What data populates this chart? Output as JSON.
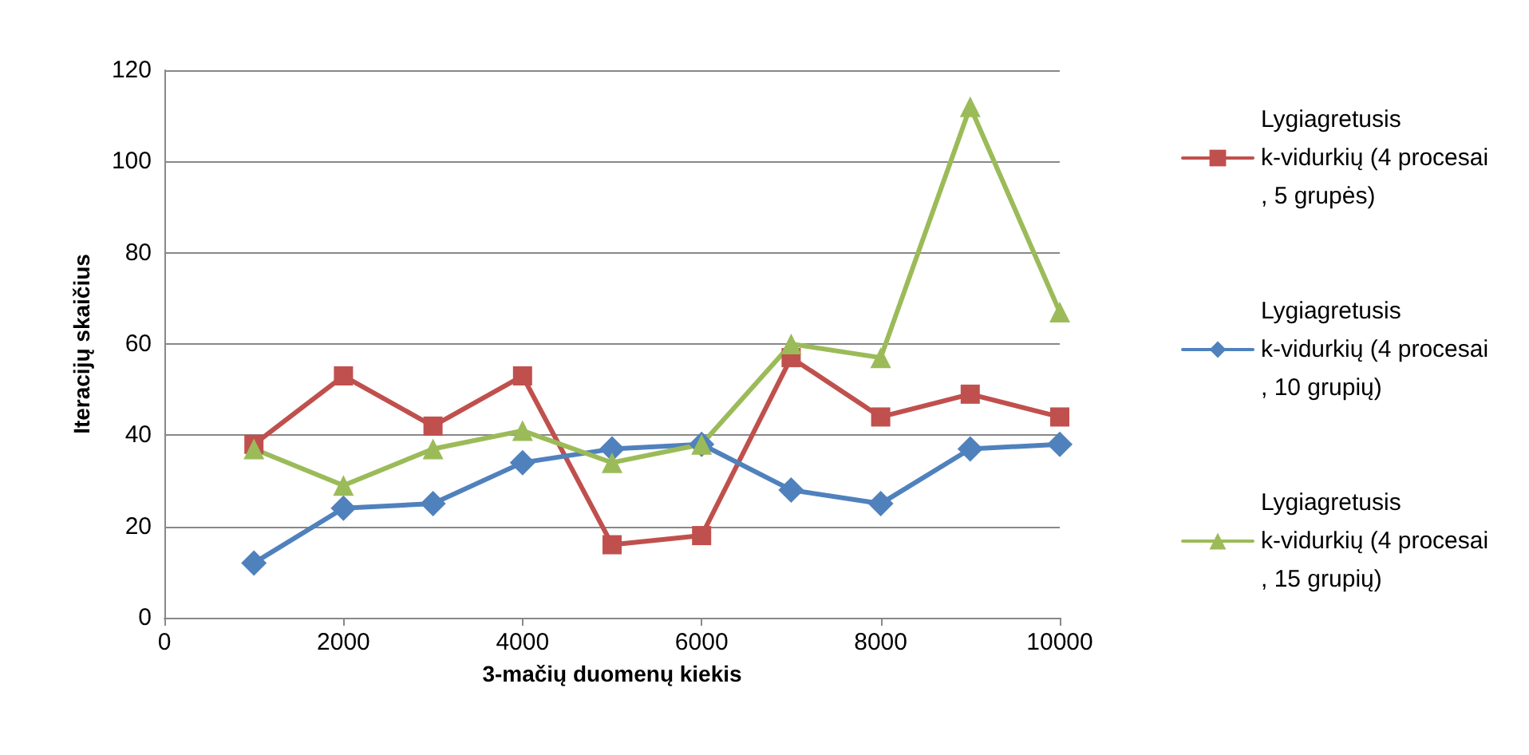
{
  "chart_data": {
    "type": "line",
    "xlabel": "3-mačių duomenų kiekis",
    "ylabel": "Iteracijų skaičius",
    "x": [
      1000,
      2000,
      3000,
      4000,
      5000,
      6000,
      7000,
      8000,
      9000,
      10000
    ],
    "xlim": [
      0,
      10000
    ],
    "xticks": [
      0,
      2000,
      4000,
      6000,
      8000,
      10000
    ],
    "ylim": [
      0,
      120
    ],
    "yticks": [
      0,
      20,
      40,
      60,
      80,
      100,
      120
    ],
    "grid": "y",
    "legend": "right",
    "series": [
      {
        "name": "Lygiagretusis k-vidurkių (4 procesai, 5 grupės)",
        "color": "#c0504d",
        "marker": "square",
        "values": [
          38,
          53,
          42,
          53,
          16,
          18,
          57,
          44,
          49,
          44
        ]
      },
      {
        "name": "Lygiagretusis k-vidurkių (4 procesai, 10 grupių)",
        "color": "#4f81bd",
        "marker": "diamond",
        "values": [
          12,
          24,
          25,
          34,
          37,
          38,
          28,
          25,
          37,
          38
        ]
      },
      {
        "name": "Lygiagretusis k-vidurkių (4 procesai, 15 grupių)",
        "color": "#9bbb59",
        "marker": "triangle",
        "values": [
          37,
          29,
          37,
          41,
          34,
          38,
          60,
          57,
          112,
          67
        ]
      }
    ]
  }
}
